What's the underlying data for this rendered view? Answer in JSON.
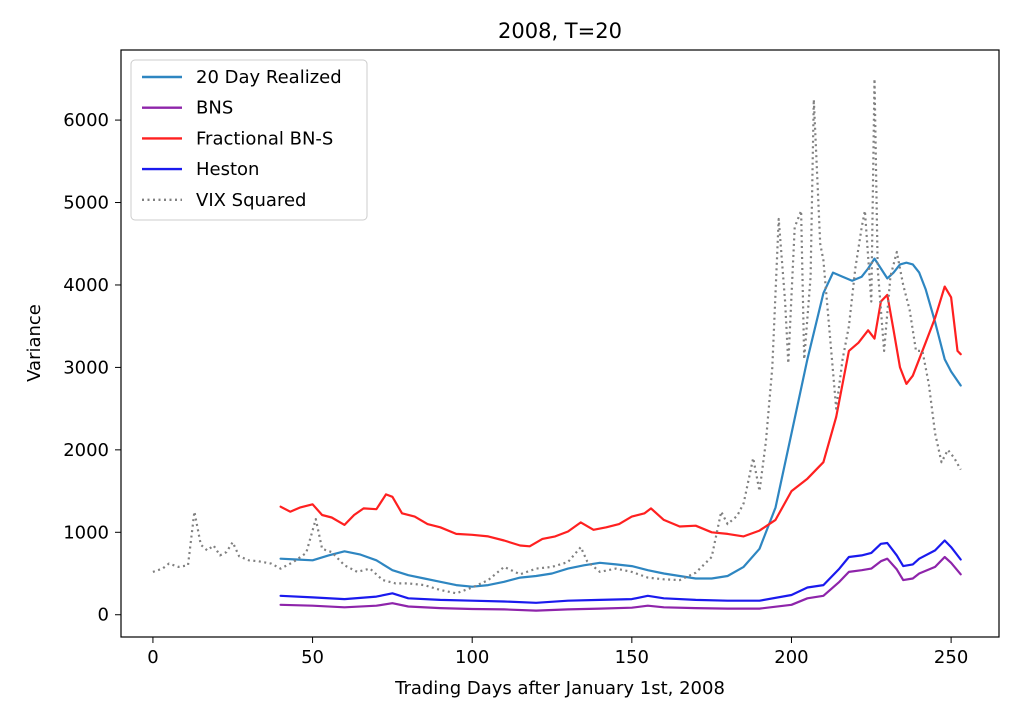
{
  "chart_data": {
    "type": "line",
    "title": "2008, T=20",
    "xlabel": "Trading Days after January 1st, 2008",
    "ylabel": "Variance",
    "xlim": [
      -10,
      265
    ],
    "ylim": [
      -270,
      6850
    ],
    "xticks": [
      0,
      50,
      100,
      150,
      200,
      250
    ],
    "yticks": [
      0,
      1000,
      2000,
      3000,
      4000,
      5000,
      6000
    ],
    "grid": false,
    "legend_position": "top-left",
    "series": [
      {
        "name": "20 Day Realized",
        "color": "#2e86c1",
        "style": "solid",
        "x": [
          40,
          45,
          50,
          55,
          60,
          65,
          70,
          75,
          80,
          85,
          90,
          95,
          100,
          105,
          110,
          115,
          120,
          125,
          130,
          135,
          140,
          145,
          150,
          155,
          160,
          165,
          170,
          175,
          180,
          185,
          190,
          195,
          200,
          205,
          210,
          213,
          216,
          219,
          222,
          224,
          226,
          228,
          230,
          232,
          234,
          236,
          238,
          240,
          242,
          245,
          248,
          250,
          253
        ],
        "y": [
          680,
          670,
          660,
          720,
          770,
          730,
          660,
          540,
          480,
          440,
          400,
          360,
          340,
          360,
          400,
          450,
          470,
          500,
          560,
          600,
          630,
          610,
          590,
          540,
          500,
          470,
          440,
          440,
          470,
          580,
          800,
          1300,
          2200,
          3100,
          3900,
          4150,
          4100,
          4050,
          4100,
          4200,
          4320,
          4200,
          4080,
          4150,
          4250,
          4270,
          4250,
          4150,
          3950,
          3550,
          3100,
          2950,
          2780
        ]
      },
      {
        "name": "BNS",
        "color": "#8e24aa",
        "style": "solid",
        "x": [
          40,
          50,
          60,
          70,
          75,
          80,
          90,
          100,
          110,
          120,
          130,
          140,
          150,
          155,
          160,
          170,
          180,
          190,
          200,
          205,
          210,
          215,
          218,
          222,
          225,
          228,
          230,
          233,
          235,
          238,
          240,
          245,
          248,
          250,
          253
        ],
        "y": [
          120,
          110,
          90,
          110,
          140,
          100,
          80,
          70,
          65,
          50,
          65,
          75,
          85,
          110,
          90,
          80,
          75,
          75,
          120,
          200,
          230,
          400,
          520,
          540,
          560,
          650,
          680,
          550,
          420,
          440,
          500,
          580,
          700,
          630,
          490
        ]
      },
      {
        "name": "Fractional BN-S",
        "color": "#ff2020",
        "style": "solid",
        "x": [
          40,
          43,
          46,
          50,
          53,
          56,
          60,
          63,
          66,
          70,
          73,
          75,
          78,
          82,
          86,
          90,
          95,
          100,
          105,
          110,
          115,
          118,
          122,
          126,
          130,
          134,
          138,
          142,
          146,
          150,
          154,
          156,
          160,
          165,
          170,
          175,
          180,
          185,
          190,
          195,
          200,
          205,
          210,
          214,
          218,
          221,
          224,
          226,
          228,
          230,
          232,
          234,
          236,
          238,
          240,
          242,
          245,
          248,
          250,
          252,
          253
        ],
        "y": [
          1310,
          1250,
          1300,
          1340,
          1210,
          1180,
          1090,
          1210,
          1290,
          1280,
          1460,
          1430,
          1230,
          1190,
          1100,
          1060,
          980,
          970,
          950,
          900,
          840,
          830,
          920,
          950,
          1010,
          1120,
          1030,
          1060,
          1100,
          1190,
          1230,
          1290,
          1150,
          1070,
          1080,
          1000,
          980,
          950,
          1020,
          1150,
          1500,
          1650,
          1850,
          2400,
          3200,
          3300,
          3450,
          3350,
          3800,
          3880,
          3450,
          3000,
          2800,
          2900,
          3100,
          3300,
          3600,
          3980,
          3850,
          3200,
          3160
        ]
      },
      {
        "name": "Heston",
        "color": "#1a1aee",
        "style": "solid",
        "x": [
          40,
          50,
          60,
          70,
          75,
          80,
          90,
          100,
          110,
          120,
          130,
          140,
          150,
          155,
          160,
          170,
          180,
          190,
          200,
          205,
          210,
          215,
          218,
          222,
          225,
          228,
          230,
          233,
          235,
          238,
          240,
          245,
          248,
          250,
          253
        ],
        "y": [
          230,
          210,
          190,
          220,
          260,
          200,
          180,
          170,
          160,
          145,
          170,
          180,
          190,
          230,
          200,
          180,
          170,
          170,
          240,
          330,
          360,
          560,
          700,
          720,
          750,
          860,
          870,
          720,
          590,
          610,
          680,
          780,
          900,
          820,
          670
        ]
      },
      {
        "name": "VIX Squared",
        "color": "#808080",
        "style": "dotted",
        "x": [
          0,
          3,
          5,
          8,
          11,
          13,
          15,
          17,
          19,
          21,
          23,
          25,
          27,
          30,
          33,
          37,
          40,
          44,
          48,
          51,
          53,
          56,
          60,
          64,
          68,
          72,
          76,
          80,
          85,
          90,
          95,
          100,
          105,
          110,
          115,
          120,
          125,
          130,
          134,
          136,
          140,
          145,
          150,
          155,
          160,
          165,
          170,
          175,
          178,
          180,
          183,
          185,
          188,
          190,
          192,
          194,
          196,
          198,
          199,
          201,
          203,
          204,
          206,
          207,
          209,
          210,
          212,
          214,
          216,
          218,
          220,
          222,
          223,
          225,
          226,
          227,
          229,
          231,
          233,
          235,
          237,
          239,
          241,
          243,
          245,
          247,
          249,
          251,
          253
        ],
        "y": [
          520,
          560,
          620,
          580,
          600,
          1250,
          850,
          780,
          840,
          720,
          760,
          880,
          710,
          660,
          650,
          620,
          560,
          640,
          750,
          1160,
          800,
          760,
          600,
          520,
          560,
          420,
          380,
          380,
          360,
          300,
          260,
          330,
          420,
          580,
          490,
          560,
          580,
          640,
          820,
          650,
          520,
          560,
          520,
          450,
          430,
          420,
          510,
          700,
          1250,
          1100,
          1200,
          1350,
          1900,
          1500,
          2100,
          3000,
          4800,
          3800,
          3050,
          4700,
          4900,
          3100,
          4100,
          6250,
          4500,
          4300,
          3400,
          2500,
          3100,
          3500,
          4200,
          4700,
          4900,
          3800,
          6500,
          4200,
          3200,
          4100,
          4400,
          4000,
          3700,
          3200,
          3200,
          2800,
          2200,
          1850,
          2000,
          1900,
          1760
        ]
      }
    ]
  }
}
